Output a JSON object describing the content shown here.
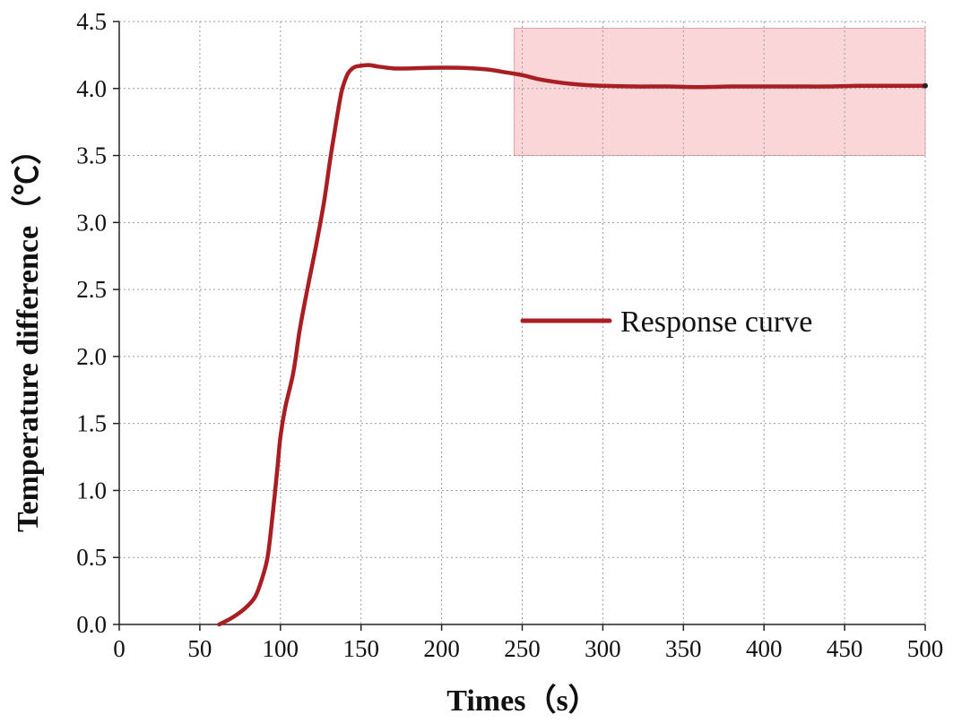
{
  "chart_data": {
    "type": "line",
    "xlabel": "Times（s）",
    "ylabel": "Temperature difference（℃）",
    "xlim": [
      0,
      500
    ],
    "ylim": [
      0,
      4.5
    ],
    "xticks": [
      "0",
      "50",
      "100",
      "150",
      "200",
      "250",
      "300",
      "350",
      "400",
      "450",
      "500"
    ],
    "yticks": [
      "0.0",
      "0.5",
      "1.0",
      "1.5",
      "2.0",
      "2.5",
      "3.0",
      "3.5",
      "4.0",
      "4.5"
    ],
    "grid": true,
    "legend_position": "middle-right",
    "highlight_region": {
      "x": [
        245,
        500
      ],
      "y": [
        3.5,
        4.45
      ],
      "color": "#f8c8cc"
    },
    "series": [
      {
        "name": "Response curve",
        "color": "#a91e22",
        "x": [
          62,
          70,
          78,
          84,
          88,
          92,
          95,
          98,
          100,
          103,
          108,
          112,
          117,
          122,
          127,
          131,
          135,
          138,
          141,
          143,
          146,
          150,
          155,
          160,
          170,
          180,
          195,
          210,
          220,
          230,
          240,
          250,
          260,
          270,
          280,
          290,
          300,
          320,
          340,
          360,
          380,
          400,
          420,
          440,
          460,
          480,
          500
        ],
        "y": [
          0.0,
          0.05,
          0.12,
          0.2,
          0.32,
          0.5,
          0.8,
          1.15,
          1.4,
          1.62,
          1.88,
          2.2,
          2.52,
          2.82,
          3.15,
          3.48,
          3.78,
          3.98,
          4.09,
          4.13,
          4.16,
          4.17,
          4.175,
          4.165,
          4.15,
          4.15,
          4.155,
          4.155,
          4.15,
          4.14,
          4.12,
          4.1,
          4.07,
          4.05,
          4.035,
          4.025,
          4.02,
          4.015,
          4.015,
          4.01,
          4.015,
          4.015,
          4.015,
          4.015,
          4.02,
          4.02,
          4.02
        ]
      }
    ]
  }
}
